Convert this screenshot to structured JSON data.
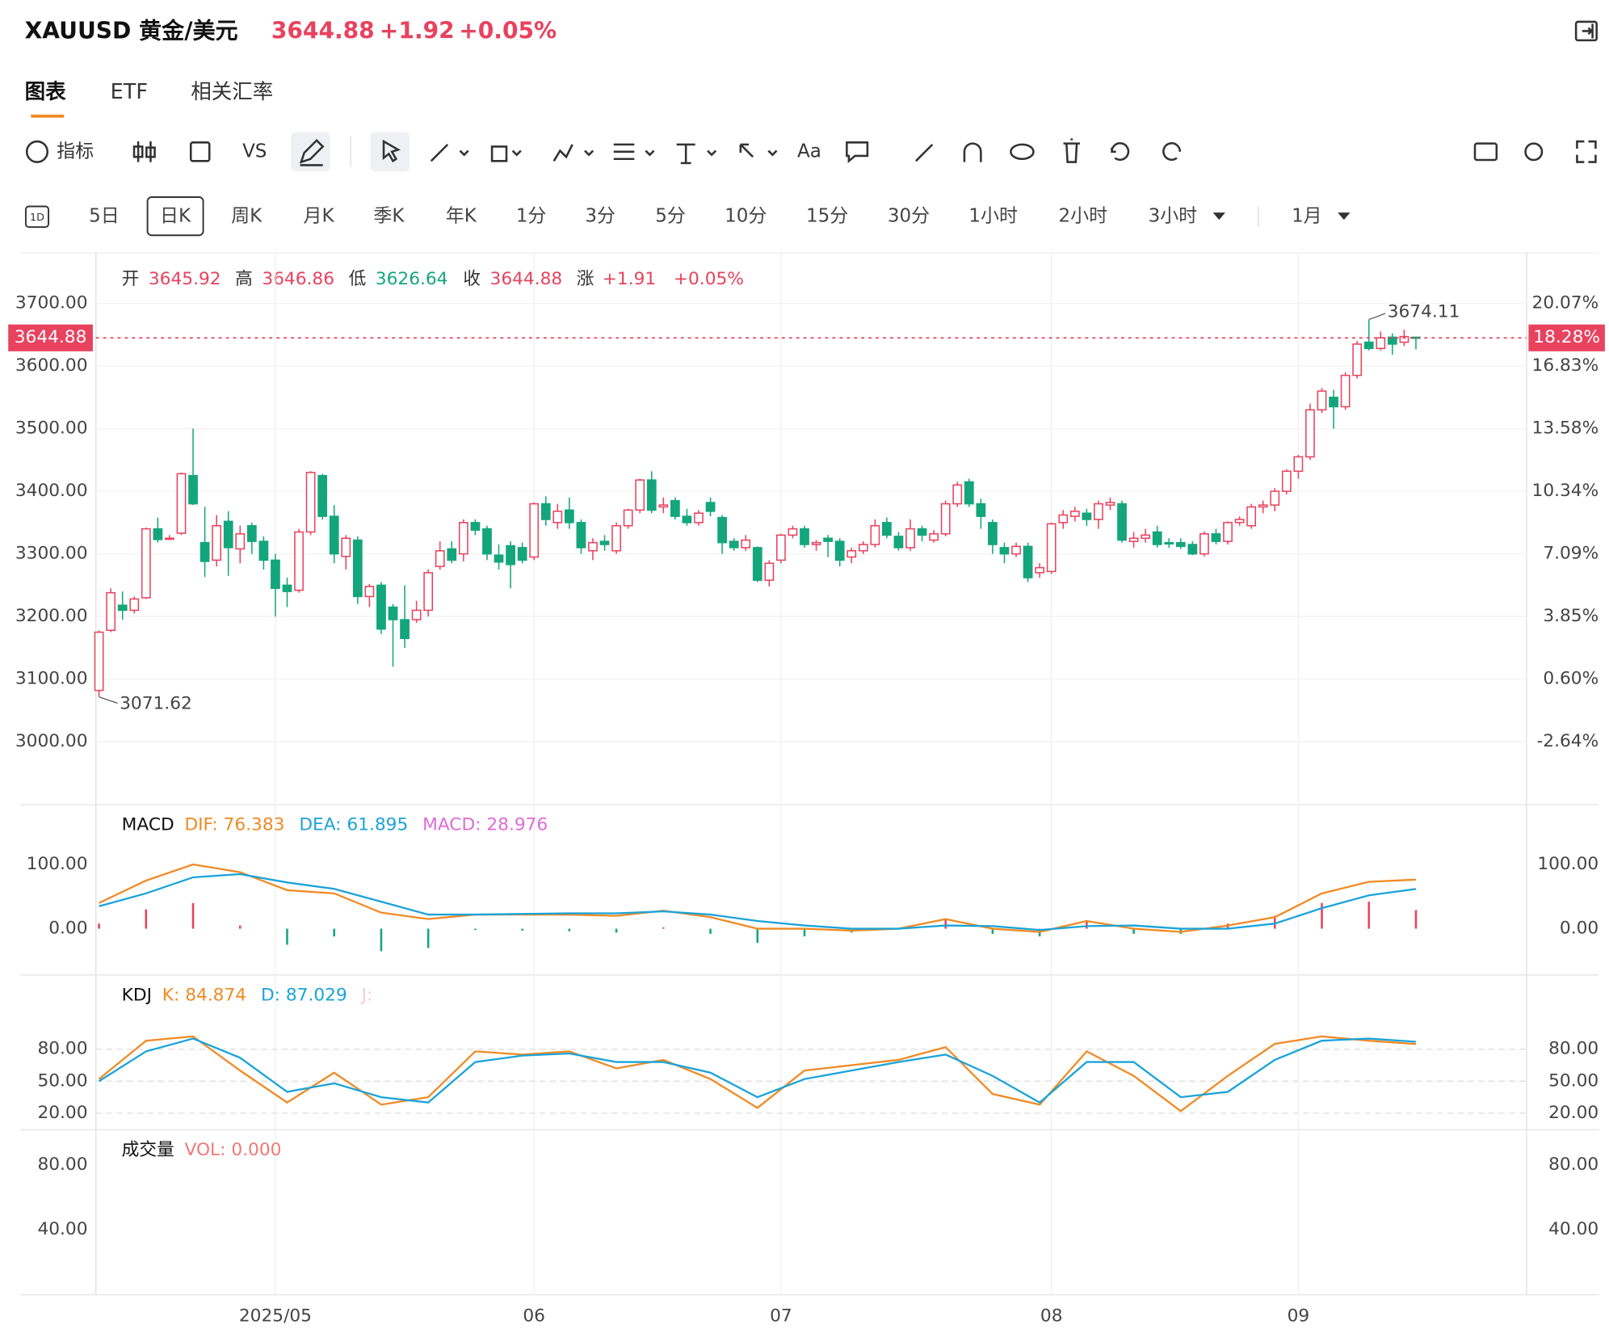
{
  "header": {
    "symbol": "XAUUSD 黄金/美元",
    "price": "3644.88",
    "change": "+1.92",
    "change_pct": "+0.05%"
  },
  "tabs": [
    "图表",
    "ETF",
    "相关汇率"
  ],
  "toolbar": {
    "indicators": "指标",
    "compare": "VS",
    "text": "Aa"
  },
  "intervals": {
    "icon": "1D",
    "items": [
      "5日",
      "日K",
      "周K",
      "月K",
      "季K",
      "年K",
      "1分",
      "3分",
      "5分",
      "10分",
      "15分",
      "30分",
      "1小时",
      "2小时",
      "3小时",
      "1月"
    ]
  },
  "info": [
    {
      "label": "开",
      "value": "3645.92",
      "color": "#e8425e"
    },
    {
      "label": "高",
      "value": "3646.86",
      "color": "#e8425e"
    },
    {
      "label": "低",
      "value": "3626.64",
      "color": "#13a67c"
    },
    {
      "label": "收",
      "value": "3644.88",
      "color": "#e8425e"
    },
    {
      "label": "涨",
      "value": "+1.91",
      "color": "#e8425e"
    },
    {
      "value": "+0.05%",
      "color": "#e8425e"
    }
  ],
  "chart_data": [
    {
      "type": "candlestick",
      "up_color": "#e8425e",
      "down_color": "#13a67c",
      "grid": true,
      "ylim": [
        2899.5,
        3780.7
      ],
      "yticks": [
        {
          "value": 3700,
          "label": "3700.00"
        },
        {
          "value": 3600,
          "label": "3600.00"
        },
        {
          "value": 3500,
          "label": "3500.00"
        },
        {
          "value": 3400,
          "label": "3400.00"
        },
        {
          "value": 3300,
          "label": "3300.00"
        },
        {
          "value": 3200,
          "label": "3200.00"
        },
        {
          "value": 3100,
          "label": "3100.00"
        },
        {
          "value": 3000,
          "label": "3000.00"
        }
      ],
      "y2lim": [
        -5.91,
        22.69
      ],
      "y2ticks": [
        {
          "value": 20.07,
          "label": "20.07%"
        },
        {
          "value": 16.83,
          "label": "16.83%"
        },
        {
          "value": 13.58,
          "label": "13.58%"
        },
        {
          "value": 10.34,
          "label": "10.34%"
        },
        {
          "value": 7.09,
          "label": "7.09%"
        },
        {
          "value": 3.85,
          "label": "3.85%"
        },
        {
          "value": 0.6,
          "label": "0.60%"
        },
        {
          "value": -2.64,
          "label": "-2.64%"
        }
      ],
      "last_pct_label": "18.28%",
      "categories": [
        null,
        null,
        null,
        null,
        null,
        null,
        null,
        null,
        null,
        null,
        null,
        null,
        null,
        null,
        null,
        "2025/05",
        null,
        null,
        null,
        null,
        null,
        null,
        null,
        null,
        null,
        null,
        null,
        null,
        null,
        null,
        null,
        null,
        null,
        null,
        null,
        null,
        null,
        "06",
        null,
        null,
        null,
        null,
        null,
        null,
        null,
        null,
        null,
        null,
        null,
        null,
        null,
        null,
        null,
        null,
        null,
        null,
        null,
        null,
        "07",
        null,
        null,
        null,
        null,
        null,
        null,
        null,
        null,
        null,
        null,
        null,
        null,
        null,
        null,
        null,
        null,
        null,
        null,
        null,
        null,
        null,
        null,
        "08",
        null,
        null,
        null,
        null,
        null,
        null,
        null,
        null,
        null,
        null,
        null,
        null,
        null,
        null,
        null,
        null,
        null,
        null,
        null,
        null,
        "09",
        null,
        null,
        null,
        null,
        null,
        null,
        null,
        null,
        null,
        null
      ],
      "candles": [
        [
          3082,
          3178,
          3071.62,
          3175
        ],
        [
          3178,
          3245,
          3175,
          3238
        ],
        [
          3218,
          3240,
          3195,
          3210
        ],
        [
          3210,
          3232,
          3205,
          3228
        ],
        [
          3230,
          3342,
          3228,
          3340
        ],
        [
          3340,
          3358,
          3318,
          3323
        ],
        [
          3325,
          3330,
          3322,
          3325
        ],
        [
          3333,
          3430,
          3330,
          3428
        ],
        [
          3425,
          3500,
          3378,
          3380
        ],
        [
          3318,
          3375,
          3263,
          3288
        ],
        [
          3290,
          3362,
          3280,
          3345
        ],
        [
          3352,
          3368,
          3265,
          3310
        ],
        [
          3308,
          3345,
          3285,
          3332
        ],
        [
          3345,
          3350,
          3300,
          3320
        ],
        [
          3320,
          3328,
          3275,
          3290
        ],
        [
          3290,
          3300,
          3200,
          3245
        ],
        [
          3250,
          3262,
          3215,
          3240
        ],
        [
          3242,
          3340,
          3238,
          3335
        ],
        [
          3335,
          3432,
          3330,
          3430
        ],
        [
          3425,
          3428,
          3355,
          3360
        ],
        [
          3360,
          3378,
          3285,
          3300
        ],
        [
          3296,
          3330,
          3275,
          3325
        ],
        [
          3322,
          3328,
          3220,
          3232
        ],
        [
          3232,
          3252,
          3215,
          3248
        ],
        [
          3250,
          3255,
          3172,
          3180
        ],
        [
          3215,
          3220,
          3120,
          3195
        ],
        [
          3195,
          3250,
          3150,
          3165
        ],
        [
          3195,
          3225,
          3190,
          3210
        ],
        [
          3210,
          3275,
          3200,
          3270
        ],
        [
          3280,
          3320,
          3275,
          3305
        ],
        [
          3308,
          3320,
          3285,
          3290
        ],
        [
          3300,
          3355,
          3288,
          3350
        ],
        [
          3350,
          3355,
          3330,
          3338
        ],
        [
          3340,
          3345,
          3290,
          3300
        ],
        [
          3298,
          3315,
          3275,
          3287
        ],
        [
          3313,
          3320,
          3245,
          3283
        ],
        [
          3310,
          3318,
          3285,
          3290
        ],
        [
          3295,
          3382,
          3290,
          3380
        ],
        [
          3380,
          3392,
          3345,
          3355
        ],
        [
          3350,
          3380,
          3340,
          3368
        ],
        [
          3370,
          3390,
          3340,
          3350
        ],
        [
          3350,
          3355,
          3300,
          3310
        ],
        [
          3305,
          3325,
          3290,
          3318
        ],
        [
          3320,
          3330,
          3305,
          3315
        ],
        [
          3305,
          3350,
          3300,
          3345
        ],
        [
          3345,
          3372,
          3340,
          3370
        ],
        [
          3370,
          3420,
          3365,
          3418
        ],
        [
          3418,
          3432,
          3365,
          3370
        ],
        [
          3375,
          3390,
          3365,
          3378
        ],
        [
          3385,
          3390,
          3355,
          3360
        ],
        [
          3360,
          3372,
          3345,
          3350
        ],
        [
          3350,
          3370,
          3345,
          3365
        ],
        [
          3382,
          3390,
          3360,
          3368
        ],
        [
          3358,
          3362,
          3300,
          3318
        ],
        [
          3320,
          3325,
          3305,
          3310
        ],
        [
          3310,
          3330,
          3305,
          3322
        ],
        [
          3310,
          3312,
          3255,
          3258
        ],
        [
          3258,
          3290,
          3248,
          3285
        ],
        [
          3290,
          3332,
          3285,
          3330
        ],
        [
          3330,
          3345,
          3325,
          3340
        ],
        [
          3340,
          3345,
          3310,
          3315
        ],
        [
          3315,
          3322,
          3305,
          3318
        ],
        [
          3325,
          3330,
          3295,
          3320
        ],
        [
          3320,
          3325,
          3280,
          3290
        ],
        [
          3295,
          3310,
          3285,
          3305
        ],
        [
          3305,
          3320,
          3300,
          3315
        ],
        [
          3315,
          3355,
          3310,
          3345
        ],
        [
          3350,
          3358,
          3325,
          3330
        ],
        [
          3328,
          3335,
          3305,
          3310
        ],
        [
          3310,
          3355,
          3305,
          3340
        ],
        [
          3340,
          3345,
          3320,
          3330
        ],
        [
          3322,
          3338,
          3318,
          3332
        ],
        [
          3332,
          3385,
          3328,
          3380
        ],
        [
          3380,
          3415,
          3375,
          3410
        ],
        [
          3415,
          3420,
          3375,
          3380
        ],
        [
          3380,
          3388,
          3340,
          3360
        ],
        [
          3350,
          3355,
          3300,
          3315
        ],
        [
          3310,
          3318,
          3285,
          3300
        ],
        [
          3300,
          3318,
          3295,
          3312
        ],
        [
          3312,
          3318,
          3255,
          3262
        ],
        [
          3270,
          3285,
          3262,
          3278
        ],
        [
          3272,
          3350,
          3268,
          3348
        ],
        [
          3350,
          3370,
          3340,
          3362
        ],
        [
          3360,
          3375,
          3352,
          3368
        ],
        [
          3365,
          3372,
          3345,
          3355
        ],
        [
          3355,
          3385,
          3340,
          3380
        ],
        [
          3378,
          3390,
          3370,
          3382
        ],
        [
          3380,
          3385,
          3318,
          3322
        ],
        [
          3320,
          3335,
          3310,
          3325
        ],
        [
          3325,
          3340,
          3318,
          3330
        ],
        [
          3335,
          3345,
          3310,
          3315
        ],
        [
          3318,
          3325,
          3310,
          3316
        ],
        [
          3318,
          3325,
          3308,
          3312
        ],
        [
          3315,
          3320,
          3298,
          3300
        ],
        [
          3300,
          3336,
          3296,
          3332
        ],
        [
          3332,
          3340,
          3315,
          3320
        ],
        [
          3320,
          3352,
          3315,
          3350
        ],
        [
          3350,
          3360,
          3345,
          3355
        ],
        [
          3345,
          3380,
          3340,
          3375
        ],
        [
          3375,
          3385,
          3365,
          3378
        ],
        [
          3378,
          3405,
          3368,
          3400
        ],
        [
          3400,
          3435,
          3395,
          3432
        ],
        [
          3432,
          3458,
          3420,
          3455
        ],
        [
          3455,
          3540,
          3450,
          3530
        ],
        [
          3530,
          3565,
          3525,
          3560
        ],
        [
          3550,
          3562,
          3500,
          3535
        ],
        [
          3535,
          3590,
          3530,
          3585
        ],
        [
          3585,
          3640,
          3580,
          3635
        ],
        [
          3638,
          3674.11,
          3625,
          3628
        ],
        [
          3628,
          3655,
          3625,
          3645
        ],
        [
          3646,
          3652,
          3618,
          3635
        ],
        [
          3638,
          3658,
          3632,
          3647
        ],
        [
          3645.92,
          3646.86,
          3626.64,
          3644.88
        ]
      ]
    },
    {
      "type": "macd",
      "title": "MACD",
      "ylim": [
        -72,
        193
      ],
      "yticks": [
        {
          "value": 100,
          "label": "100.00"
        },
        {
          "value": 0,
          "label": "0.00"
        }
      ],
      "histogram_colors": {
        "up": "#e8425e",
        "down": "#13a67c"
      },
      "x": [
        0,
        4,
        8,
        12,
        16,
        20,
        24,
        28,
        32,
        36,
        40,
        44,
        48,
        52,
        56,
        60,
        64,
        68,
        72,
        76,
        80,
        84,
        88,
        92,
        96,
        100,
        104,
        108,
        112
      ],
      "series": [
        {
          "name": "DIF: 76.383",
          "color": "#f08a24",
          "style": "line",
          "values": [
            40,
            75,
            100,
            88,
            60,
            55,
            25,
            15,
            22,
            22,
            22,
            20,
            28,
            18,
            0,
            0,
            -3,
            0,
            15,
            0,
            -5,
            12,
            0,
            -5,
            5,
            18,
            55,
            73,
            76.383
          ]
        },
        {
          "name": "DEA: 61.895",
          "color": "#1aa3d9",
          "style": "line",
          "values": [
            35,
            55,
            80,
            85,
            72,
            62,
            42,
            22,
            22,
            23,
            24,
            24,
            27,
            22,
            12,
            5,
            0,
            0,
            5,
            4,
            -2,
            4,
            5,
            0,
            0,
            8,
            32,
            52,
            61.895
          ]
        },
        {
          "name": "MACD: 28.976",
          "color": "#e06bd6",
          "style": "histogram",
          "values": [
            8,
            30,
            40,
            5,
            -25,
            -12,
            -35,
            -30,
            -2,
            -3,
            -4,
            -6,
            2,
            -8,
            -22,
            -12,
            -6,
            0,
            14,
            -8,
            -12,
            12,
            -8,
            -8,
            8,
            20,
            40,
            42,
            28.976
          ]
        }
      ]
    },
    {
      "type": "line",
      "title": "KDJ",
      "ylim": [
        4.5,
        149.7
      ],
      "grid": "dashed",
      "yticks": [
        {
          "value": 80,
          "label": "80.00"
        },
        {
          "value": 50,
          "label": "50.00"
        },
        {
          "value": 20,
          "label": "20.00"
        }
      ],
      "x": [
        0,
        4,
        8,
        12,
        16,
        20,
        24,
        28,
        32,
        36,
        40,
        44,
        48,
        52,
        56,
        60,
        64,
        68,
        72,
        76,
        80,
        84,
        88,
        92,
        96,
        100,
        104,
        108,
        112
      ],
      "series": [
        {
          "name": "K: 84.874",
          "color": "#f08a24",
          "values": [
            52,
            88,
            92,
            60,
            30,
            58,
            28,
            35,
            78,
            75,
            78,
            62,
            70,
            52,
            25,
            60,
            65,
            70,
            82,
            38,
            28,
            78,
            55,
            22,
            55,
            85,
            92,
            88,
            84.874
          ]
        },
        {
          "name": "D: 87.029",
          "color": "#1aa3d9",
          "values": [
            50,
            78,
            90,
            72,
            40,
            48,
            35,
            30,
            68,
            74,
            76,
            68,
            68,
            58,
            35,
            52,
            60,
            68,
            75,
            55,
            30,
            68,
            68,
            35,
            40,
            70,
            88,
            90,
            87.029
          ]
        }
      ],
      "inactive_legend": {
        "name": "J:",
        "color": "#f5c8ea"
      }
    },
    {
      "type": "bar",
      "title": "成交量",
      "ylim": [
        0,
        101.6
      ],
      "yticks": [
        {
          "value": 80,
          "label": "80.00"
        },
        {
          "value": 40,
          "label": "40.00"
        }
      ],
      "series": [
        {
          "name": "VOL: 0.000",
          "color": "#f07878",
          "values": []
        }
      ]
    }
  ]
}
